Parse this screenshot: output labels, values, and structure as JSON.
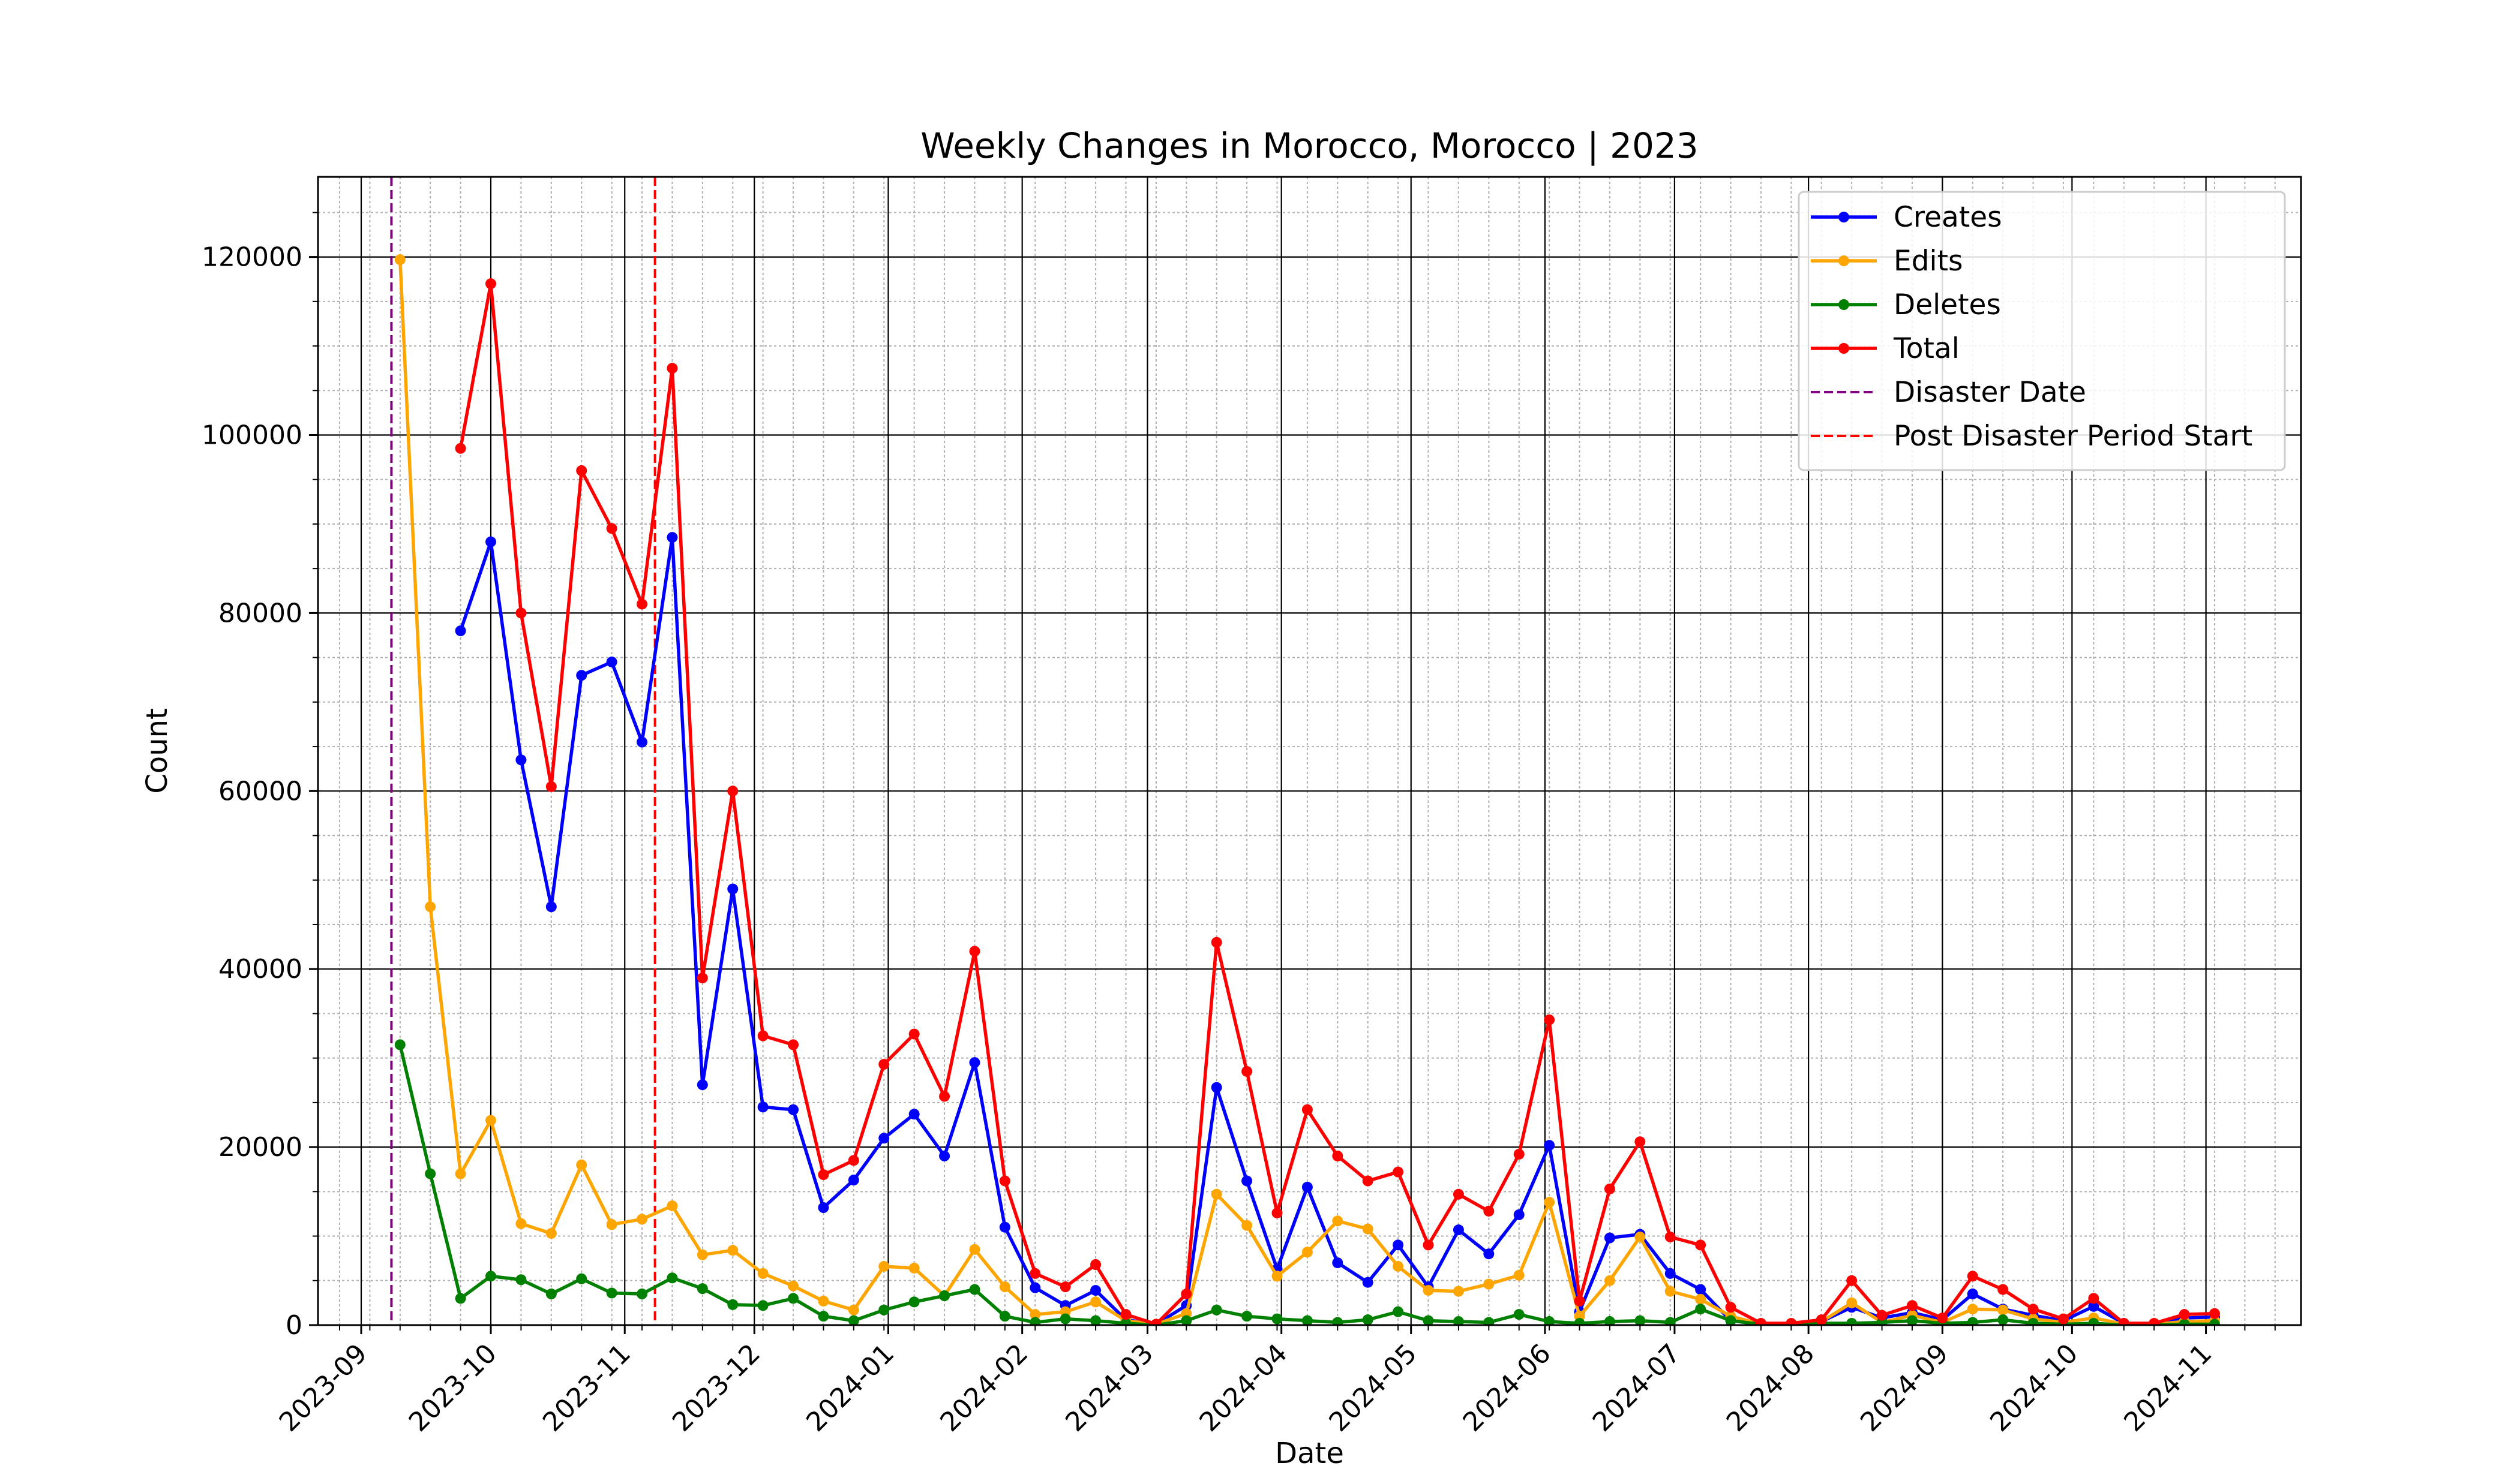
{
  "chart_data": {
    "type": "line",
    "title": "Weekly Changes in Morocco, Morocco | 2023",
    "xlabel": "Date",
    "ylabel": "Count",
    "xlim": [
      "2023-08-22",
      "2024-11-23"
    ],
    "ylim": [
      0,
      129000
    ],
    "grid": true,
    "legend_position": "top-right",
    "yticks": [
      0,
      20000,
      40000,
      60000,
      80000,
      100000,
      120000
    ],
    "ytick_labels": [
      "0",
      "20000",
      "40000",
      "60000",
      "80000",
      "100000",
      "120000"
    ],
    "xticks": [
      "2023-09-01",
      "2023-10-01",
      "2023-11-01",
      "2023-12-01",
      "2024-01-01",
      "2024-02-01",
      "2024-03-01",
      "2024-04-01",
      "2024-05-01",
      "2024-06-01",
      "2024-07-01",
      "2024-08-01",
      "2024-09-01",
      "2024-10-01",
      "2024-11-01"
    ],
    "xtick_labels": [
      "2023-09",
      "2023-10",
      "2023-11",
      "2023-12",
      "2024-01",
      "2024-02",
      "2024-03",
      "2024-04",
      "2024-05",
      "2024-06",
      "2024-07",
      "2024-08",
      "2024-09",
      "2024-10",
      "2024-11"
    ],
    "x": [
      "2023-09-10",
      "2023-09-17",
      "2023-09-24",
      "2023-10-01",
      "2023-10-08",
      "2023-10-15",
      "2023-10-22",
      "2023-10-29",
      "2023-11-05",
      "2023-11-12",
      "2023-11-19",
      "2023-11-26",
      "2023-12-03",
      "2023-12-10",
      "2023-12-17",
      "2023-12-24",
      "2023-12-31",
      "2024-01-07",
      "2024-01-14",
      "2024-01-21",
      "2024-01-28",
      "2024-02-04",
      "2024-02-11",
      "2024-02-18",
      "2024-02-25",
      "2024-03-03",
      "2024-03-10",
      "2024-03-17",
      "2024-03-24",
      "2024-03-31",
      "2024-04-07",
      "2024-04-14",
      "2024-04-21",
      "2024-04-28",
      "2024-05-05",
      "2024-05-12",
      "2024-05-19",
      "2024-05-26",
      "2024-06-02",
      "2024-06-09",
      "2024-06-16",
      "2024-06-23",
      "2024-06-30",
      "2024-07-07",
      "2024-07-14",
      "2024-07-21",
      "2024-07-28",
      "2024-08-04",
      "2024-08-11",
      "2024-08-18",
      "2024-08-25",
      "2024-09-01",
      "2024-09-08",
      "2024-09-15",
      "2024-09-22",
      "2024-09-29",
      "2024-10-06",
      "2024-10-13",
      "2024-10-20",
      "2024-10-27",
      "2024-11-03"
    ],
    "series": [
      {
        "name": "Creates",
        "color": "#0000ff",
        "values": [
          null,
          null,
          78000,
          88000,
          63500,
          47000,
          73000,
          74500,
          65500,
          88500,
          27000,
          49000,
          24500,
          24200,
          13200,
          16300,
          21000,
          23700,
          19000,
          29500,
          11000,
          4200,
          2200,
          3900,
          600,
          100,
          2200,
          26700,
          16200,
          6300,
          15500,
          7000,
          4800,
          9000,
          4300,
          10700,
          8000,
          12400,
          20200,
          1500,
          9800,
          10200,
          5800,
          4000,
          500,
          100,
          100,
          400,
          2000,
          800,
          1400,
          600,
          3500,
          1800,
          1100,
          500,
          2100,
          200,
          100,
          800,
          900
        ]
      },
      {
        "name": "Edits",
        "color": "#ffa500",
        "values": [
          119700,
          47000,
          17000,
          23000,
          11400,
          10300,
          18000,
          11300,
          11900,
          13400,
          7900,
          8400,
          5800,
          4400,
          2700,
          1700,
          6600,
          6400,
          3300,
          8500,
          4300,
          1200,
          1500,
          2600,
          500,
          100,
          1300,
          14700,
          11200,
          5500,
          8200,
          11700,
          10800,
          6600,
          3900,
          3800,
          4600,
          5600,
          13800,
          1000,
          5000,
          9900,
          3800,
          2900,
          1000,
          100,
          100,
          400,
          2500,
          300,
          1100,
          300,
          1800,
          1700,
          700,
          300,
          800,
          100,
          100,
          400,
          500
        ]
      },
      {
        "name": "Deletes",
        "color": "#008000",
        "values": [
          31500,
          17000,
          3000,
          5500,
          5100,
          3500,
          5200,
          3600,
          3500,
          5300,
          4100,
          2300,
          2200,
          3000,
          1000,
          500,
          1700,
          2600,
          3300,
          4000,
          1000,
          300,
          700,
          500,
          200,
          0,
          500,
          1700,
          1000,
          700,
          500,
          300,
          600,
          1500,
          500,
          400,
          300,
          1200,
          400,
          200,
          400,
          500,
          300,
          1800,
          500,
          100,
          0,
          200,
          200,
          300,
          500,
          200,
          300,
          600,
          200,
          100,
          200,
          0,
          0,
          100,
          100
        ]
      },
      {
        "name": "Total",
        "color": "#ff0000",
        "values": [
          null,
          null,
          98500,
          117000,
          80000,
          60500,
          96000,
          89500,
          81000,
          107500,
          39000,
          60000,
          32500,
          31500,
          16900,
          18500,
          29300,
          32700,
          25700,
          42000,
          16200,
          5800,
          4300,
          6800,
          1200,
          100,
          3500,
          43000,
          28500,
          12600,
          24200,
          19000,
          16200,
          17200,
          9000,
          14700,
          12800,
          19200,
          34300,
          2700,
          15300,
          20600,
          9900,
          9000,
          2000,
          200,
          200,
          600,
          5000,
          1100,
          2200,
          800,
          5500,
          4000,
          1800,
          700,
          3000,
          200,
          200,
          1200,
          1300
        ]
      }
    ],
    "vlines": [
      {
        "name": "Disaster Date",
        "x": "2023-09-08",
        "color": "#800080"
      },
      {
        "name": "Post Disaster Period Start",
        "x": "2023-11-08",
        "color": "#ff0000"
      }
    ]
  }
}
